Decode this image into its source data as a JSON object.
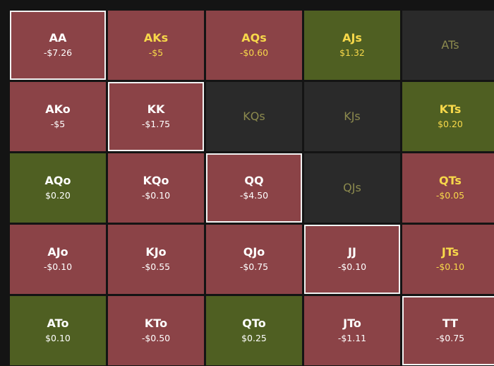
{
  "grid": {
    "rows": [
      [
        {
          "label": "AA",
          "value": "-$7.26",
          "color": "#8b4347",
          "text_color": "#ffffff",
          "outlined": true
        },
        {
          "label": "AKs",
          "value": "-$5",
          "color": "#8b4347",
          "text_color": "#f7d84a"
        },
        {
          "label": "AQs",
          "value": "-$0.60",
          "color": "#8b4347",
          "text_color": "#f7d84a"
        },
        {
          "label": "AJs",
          "value": "$1.32",
          "color": "#4f5f22",
          "text_color": "#f7d84a"
        },
        {
          "label": "ATs",
          "color": "#2a2a2a",
          "text_color": "#8c8a4e"
        }
      ],
      [
        {
          "label": "AKo",
          "value": "-$5",
          "color": "#8b4347",
          "text_color": "#ffffff"
        },
        {
          "label": "KK",
          "value": "-$1.75",
          "color": "#8b4347",
          "text_color": "#ffffff",
          "outlined": true
        },
        {
          "label": "KQs",
          "color": "#2a2a2a",
          "text_color": "#8c8a4e"
        },
        {
          "label": "KJs",
          "color": "#2a2a2a",
          "text_color": "#8c8a4e"
        },
        {
          "label": "KTs",
          "value": "$0.20",
          "color": "#4f5f22",
          "text_color": "#f7d84a"
        }
      ],
      [
        {
          "label": "AQo",
          "value": "$0.20",
          "color": "#4f5f22",
          "text_color": "#ffffff"
        },
        {
          "label": "KQo",
          "value": "-$0.10",
          "color": "#8b4347",
          "text_color": "#ffffff"
        },
        {
          "label": "QQ",
          "value": "-$4.50",
          "color": "#8b4347",
          "text_color": "#ffffff",
          "outlined": true
        },
        {
          "label": "QJs",
          "color": "#2a2a2a",
          "text_color": "#8c8a4e"
        },
        {
          "label": "QTs",
          "value": "-$0.05",
          "color": "#8b4347",
          "text_color": "#f7d84a"
        }
      ],
      [
        {
          "label": "AJo",
          "value": "-$0.10",
          "color": "#8b4347",
          "text_color": "#ffffff"
        },
        {
          "label": "KJo",
          "value": "-$0.55",
          "color": "#8b4347",
          "text_color": "#ffffff"
        },
        {
          "label": "QJo",
          "value": "-$0.75",
          "color": "#8b4347",
          "text_color": "#ffffff"
        },
        {
          "label": "JJ",
          "value": "-$0.10",
          "color": "#8b4347",
          "text_color": "#ffffff",
          "outlined": true
        },
        {
          "label": "JTs",
          "value": "-$0.10",
          "color": "#8b4347",
          "text_color": "#f7d84a"
        }
      ],
      [
        {
          "label": "ATo",
          "value": "$0.10",
          "color": "#4f5f22",
          "text_color": "#ffffff"
        },
        {
          "label": "KTo",
          "value": "-$0.50",
          "color": "#8b4347",
          "text_color": "#ffffff"
        },
        {
          "label": "QTo",
          "value": "$0.25",
          "color": "#4f5f22",
          "text_color": "#ffffff"
        },
        {
          "label": "JTo",
          "value": "-$1.11",
          "color": "#8b4347",
          "text_color": "#ffffff"
        },
        {
          "label": "TT",
          "value": "-$0.75",
          "color": "#8b4347",
          "text_color": "#ffffff",
          "outlined": true
        }
      ]
    ]
  }
}
